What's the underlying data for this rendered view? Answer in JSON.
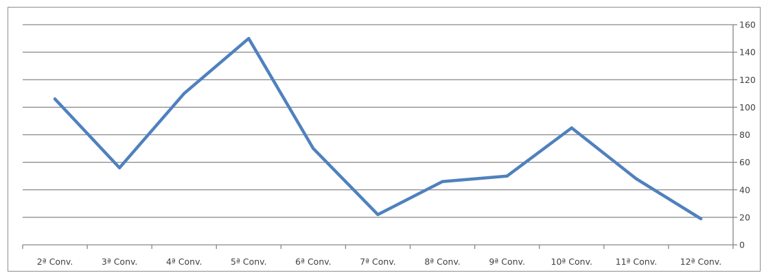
{
  "chart_data": {
    "type": "line",
    "title": "",
    "xlabel": "",
    "ylabel": "",
    "categories": [
      "2ª Conv.",
      "3ª Conv.",
      "4ª Conv.",
      "5ª Conv.",
      "6ª Conv.",
      "7ª Conv.",
      "8ª Conv.",
      "9ª Conv.",
      "10ª Conv.",
      "11ª Conv.",
      "12ª Conv."
    ],
    "series": [
      {
        "values": [
          106,
          56,
          110,
          150,
          70,
          22,
          46,
          50,
          85,
          48,
          19
        ]
      }
    ],
    "ylim": [
      0,
      160
    ],
    "yticks": [
      "0",
      "20",
      "40",
      "60",
      "80",
      "100",
      "120",
      "140",
      "160"
    ],
    "y_axis_position": "right",
    "grid": true,
    "legend": "none",
    "line_color": "#4f81bd",
    "grid_color": "#868686"
  }
}
